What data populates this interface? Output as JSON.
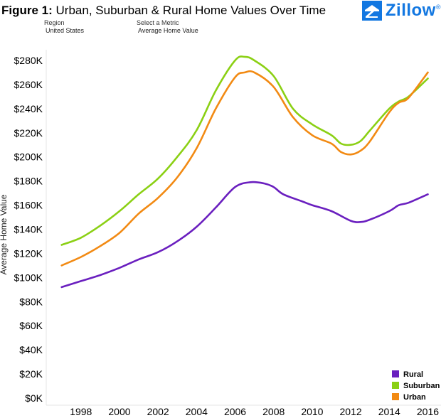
{
  "header": {
    "figure_label": "Figure 1:",
    "title_text": "Urban, Suburban & Rural Home Values Over Time",
    "region_label": "Region",
    "region_value": "United States",
    "metric_label": "Select a Metric",
    "metric_value": "Average Home Value",
    "logo_text": "Zillow",
    "logo_mark": "®"
  },
  "colors": {
    "rural": "#6a1fbf",
    "suburban": "#8bd014",
    "urban": "#f28a13"
  },
  "chart_data": {
    "type": "line",
    "title": "Urban, Suburban & Rural Home Values Over Time",
    "xlabel": "",
    "ylabel": "Average Home Value",
    "xlim": [
      1996.2,
      2016.5
    ],
    "ylim": [
      0,
      290000
    ],
    "x_ticks": [
      1998,
      2000,
      2002,
      2004,
      2006,
      2008,
      2010,
      2012,
      2014,
      2016
    ],
    "x_tick_labels": [
      "1998",
      "2000",
      "2002",
      "2004",
      "2006",
      "2008",
      "2010",
      "2012",
      "2014",
      "2016"
    ],
    "y_ticks": [
      0,
      20000,
      40000,
      60000,
      80000,
      100000,
      120000,
      140000,
      160000,
      180000,
      200000,
      220000,
      240000,
      260000,
      280000
    ],
    "y_tick_labels": [
      "$0K",
      "$20K",
      "$40K",
      "$60K",
      "$80K",
      "$100K",
      "$120K",
      "$140K",
      "$160K",
      "$180K",
      "$200K",
      "$220K",
      "$240K",
      "$260K",
      "$280K"
    ],
    "legend_position": "bottom-right",
    "grid": false,
    "series": [
      {
        "name": "Rural",
        "color_key": "rural",
        "x": [
          1997,
          1998,
          1999,
          2000,
          2001,
          2002,
          2003,
          2004,
          2005,
          2006,
          2006.8,
          2007.5,
          2008,
          2008.5,
          2009.5,
          2010,
          2011,
          2012,
          2012.5,
          2013,
          2014,
          2014.5,
          2015,
          2016
        ],
        "y": [
          92000,
          97000,
          102000,
          108000,
          115000,
          121000,
          130000,
          142000,
          158000,
          175000,
          179000,
          178000,
          175000,
          169000,
          163000,
          160000,
          155000,
          147000,
          146000,
          148000,
          155000,
          160000,
          162000,
          169000
        ]
      },
      {
        "name": "Suburban",
        "color_key": "suburban",
        "x": [
          1997,
          1998,
          1999,
          2000,
          2001,
          2002,
          2003,
          2004,
          2005,
          2006,
          2006.5,
          2007,
          2008,
          2009,
          2010,
          2011,
          2011.5,
          2012,
          2012.5,
          2013,
          2014,
          2014.5,
          2015,
          2016
        ],
        "y": [
          127000,
          133000,
          143000,
          155000,
          169000,
          182000,
          200000,
          222000,
          255000,
          280000,
          283000,
          280000,
          267000,
          240000,
          227000,
          218000,
          211000,
          210000,
          213000,
          222000,
          240000,
          246000,
          250000,
          265000
        ]
      },
      {
        "name": "Urban",
        "color_key": "urban",
        "x": [
          1997,
          1998,
          1999,
          2000,
          2001,
          2002,
          2003,
          2004,
          2005,
          2006,
          2006.5,
          2007,
          2008,
          2009,
          2010,
          2011,
          2011.5,
          2012,
          2012.5,
          2013,
          2014,
          2014.5,
          2015,
          2016
        ],
        "y": [
          110000,
          117000,
          126000,
          137000,
          153000,
          166000,
          183000,
          207000,
          240000,
          266000,
          270000,
          270000,
          258000,
          233000,
          218000,
          211000,
          204000,
          202000,
          205000,
          213000,
          237000,
          245000,
          249000,
          270000
        ]
      }
    ]
  }
}
